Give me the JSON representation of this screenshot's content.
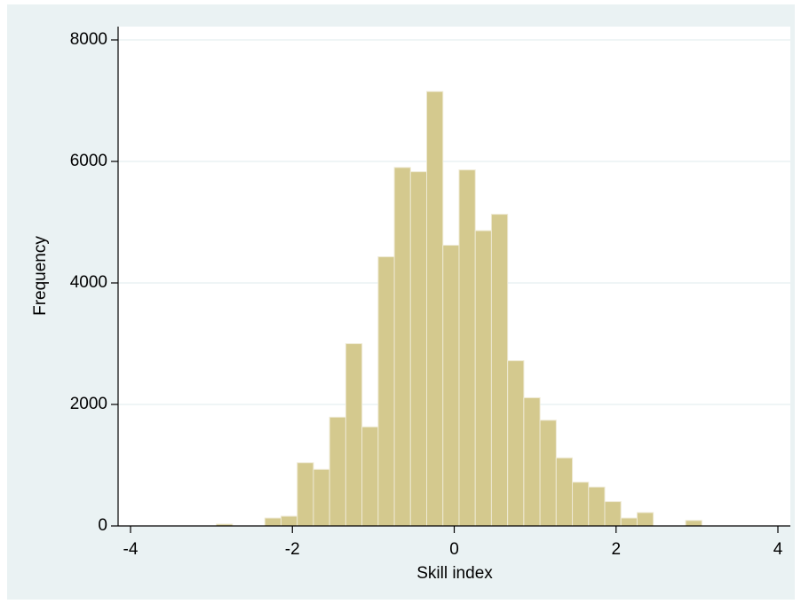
{
  "chart_data": {
    "type": "histogram",
    "x_label": "Skill index",
    "y_label": "Frequency",
    "bins": [
      -2.94,
      -2.74,
      -2.54,
      -2.34,
      -2.14,
      -1.94,
      -1.74,
      -1.54,
      -1.34,
      -1.14,
      -0.94,
      -0.74,
      -0.54,
      -0.34,
      -0.14,
      0.06,
      0.26,
      0.46,
      0.66,
      0.86,
      1.06,
      1.26,
      1.46,
      1.66,
      1.86,
      2.06,
      2.26,
      2.46,
      2.66,
      2.86,
      3.06
    ],
    "counts": [
      30,
      0,
      0,
      130,
      160,
      1040,
      930,
      1790,
      3000,
      1630,
      4430,
      5900,
      5830,
      7150,
      4620,
      5860,
      4860,
      5130,
      2720,
      2110,
      1740,
      1120,
      720,
      640,
      400,
      130,
      220,
      0,
      0,
      90
    ],
    "color": "#d4c98e",
    "xlim": [
      -4,
      4
    ],
    "xticks": [
      -4,
      -2,
      0,
      2,
      4
    ],
    "ylim": [
      0,
      8000
    ],
    "yticks": [
      0,
      2000,
      4000,
      6000,
      8000
    ],
    "grid": true
  }
}
